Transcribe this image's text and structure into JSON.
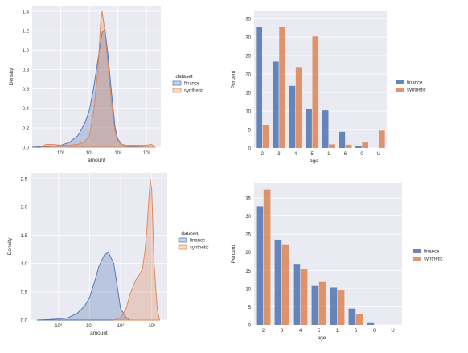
{
  "chart_data": [
    {
      "type": "area",
      "xlabel": "amount",
      "ylabel": "Density",
      "xscale": "log",
      "ylim": [
        0,
        1.45
      ],
      "y_ticks": [
        0.0,
        0.2,
        0.4,
        0.6,
        0.8,
        1.0,
        1.2,
        1.4
      ],
      "x_ticks": [
        "10⁰",
        "10¹",
        "10²",
        "10³"
      ],
      "grid": true,
      "legend": {
        "title": "dataset",
        "placement": "right",
        "entries": [
          "finance",
          "synthetic"
        ]
      },
      "series": [
        {
          "name": "finance",
          "color": "#4c72b0",
          "x": [
            0.1,
            0.5,
            1,
            2,
            4,
            7,
            10,
            14,
            20,
            28,
            35,
            45,
            60,
            80,
            100,
            140,
            200,
            400,
            1000
          ],
          "values": [
            0,
            0.01,
            0.02,
            0.05,
            0.12,
            0.25,
            0.38,
            0.6,
            0.9,
            1.18,
            1.22,
            0.95,
            0.55,
            0.2,
            0.08,
            0.03,
            0.01,
            0.005,
            0
          ]
        },
        {
          "name": "synthetic",
          "color": "#dd8452",
          "x": [
            0.2,
            0.3,
            0.5,
            1,
            2,
            4,
            7,
            10,
            14,
            20,
            25,
            28,
            35,
            45,
            60,
            80,
            100,
            140,
            200,
            400,
            1000,
            1500,
            2000
          ],
          "values": [
            0,
            0.03,
            0.03,
            0.02,
            0.02,
            0.03,
            0.06,
            0.12,
            0.35,
            0.8,
            1.3,
            1.4,
            1.2,
            0.85,
            0.45,
            0.15,
            0.06,
            0.03,
            0.02,
            0.02,
            0.02,
            0.03,
            0
          ]
        }
      ]
    },
    {
      "type": "bar",
      "xlabel": "age",
      "ylabel": "Percent",
      "ylim": [
        0,
        37
      ],
      "y_ticks": [
        0,
        5,
        10,
        15,
        20,
        25,
        30,
        35
      ],
      "categories": [
        "2",
        "3",
        "4",
        "5",
        "1",
        "6",
        "0",
        "U"
      ],
      "grid": true,
      "legend": {
        "placement": "right",
        "entries": [
          "finance",
          "synthetic"
        ]
      },
      "series": [
        {
          "name": "finance",
          "color": "#4c72b0",
          "values": [
            32.8,
            23.4,
            16.8,
            10.6,
            10.2,
            4.4,
            0.6,
            0.0
          ]
        },
        {
          "name": "synthetic",
          "color": "#dd8452",
          "values": [
            6.2,
            32.7,
            21.9,
            30.2,
            1.0,
            0.9,
            1.5,
            4.7
          ]
        }
      ]
    },
    {
      "type": "area",
      "xlabel": "amount",
      "ylabel": "Density",
      "xscale": "log",
      "ylim": [
        0,
        2.6
      ],
      "y_ticks": [
        0.0,
        0.5,
        1.0,
        1.5,
        2.0,
        2.5
      ],
      "x_ticks": [
        "10⁰",
        "10¹",
        "10²",
        "10³"
      ],
      "grid": true,
      "legend": {
        "title": "dataset",
        "placement": "right",
        "entries": [
          "finance",
          "synthetic"
        ]
      },
      "series": [
        {
          "name": "finance",
          "color": "#4c72b0",
          "x": [
            0.2,
            0.5,
            1,
            2,
            4,
            7,
            10,
            15,
            20,
            30,
            40,
            60,
            80,
            100,
            150,
            200
          ],
          "values": [
            0,
            0.01,
            0.02,
            0.04,
            0.12,
            0.25,
            0.4,
            0.7,
            0.95,
            1.15,
            1.2,
            1.0,
            0.55,
            0.2,
            0.05,
            0
          ]
        },
        {
          "name": "synthetic",
          "color": "#dd8452",
          "x": [
            60,
            100,
            150,
            200,
            300,
            400,
            500,
            600,
            700,
            800,
            900,
            1000,
            1200,
            1500,
            1800
          ],
          "values": [
            0,
            0.05,
            0.2,
            0.45,
            0.7,
            0.8,
            0.9,
            1.2,
            1.6,
            2.1,
            2.5,
            2.3,
            1.0,
            0.2,
            0
          ]
        }
      ]
    },
    {
      "type": "bar",
      "xlabel": "age",
      "ylabel": "Percent",
      "ylim": [
        0,
        39
      ],
      "y_ticks": [
        0,
        5,
        10,
        15,
        20,
        25,
        30,
        35
      ],
      "categories": [
        "2",
        "3",
        "4",
        "5",
        "1",
        "6",
        "0",
        "U"
      ],
      "grid": true,
      "legend": {
        "placement": "right",
        "entries": [
          "finance",
          "synthetic"
        ]
      },
      "series": [
        {
          "name": "finance",
          "color": "#4c72b0",
          "values": [
            32.7,
            23.5,
            16.8,
            10.7,
            10.3,
            4.5,
            0.5,
            0.0
          ]
        },
        {
          "name": "synthetic",
          "color": "#dd8452",
          "values": [
            37.3,
            22.0,
            15.4,
            11.8,
            9.5,
            3.0,
            0.0,
            0.0
          ]
        }
      ]
    }
  ]
}
